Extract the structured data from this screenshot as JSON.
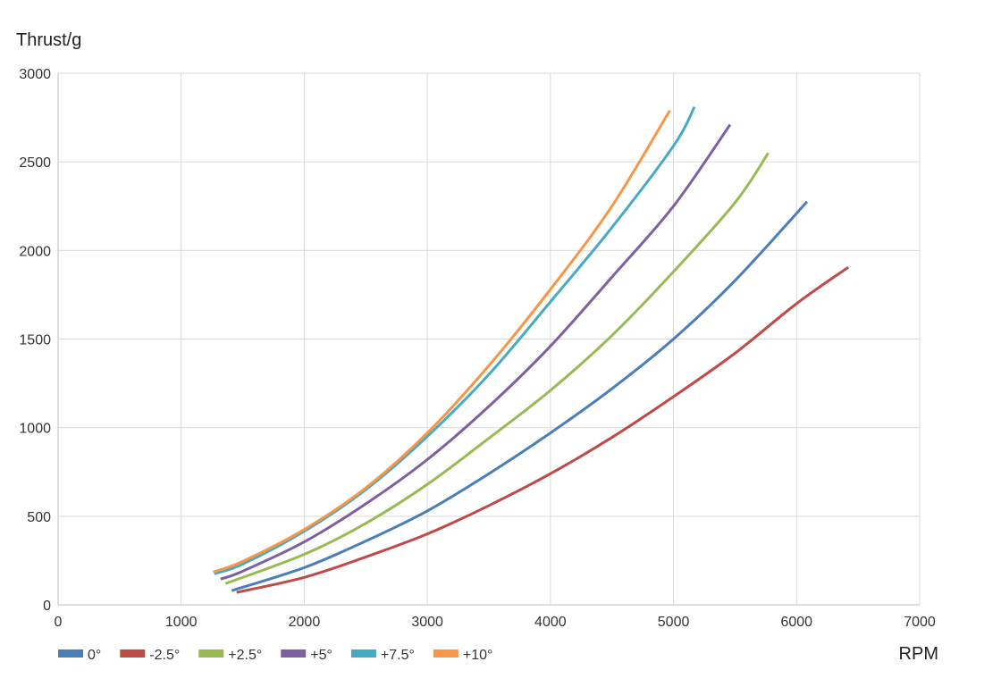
{
  "chart_data": {
    "type": "line",
    "title": "",
    "xlabel": "RPM",
    "ylabel": "Thrust/g",
    "xlim": [
      0,
      7000
    ],
    "ylim": [
      0,
      3000
    ],
    "xticks": [
      0,
      1000,
      2000,
      3000,
      4000,
      5000,
      6000,
      7000
    ],
    "yticks": [
      0,
      500,
      1000,
      1500,
      2000,
      2500,
      3000
    ],
    "x_tick_labels": [
      "0",
      "1000",
      "2000",
      "3000",
      "4000",
      "5000",
      "6000",
      "7000"
    ],
    "y_tick_labels": [
      "0",
      "500",
      "1000",
      "1500",
      "2000",
      "2500",
      "3000"
    ],
    "grid": true,
    "legend_position": "bottom-left",
    "series": [
      {
        "name": "0°",
        "color": "#4a7ebb",
        "x": [
          1410,
          2000,
          2500,
          3000,
          3500,
          4000,
          4500,
          5000,
          5500,
          6085
        ],
        "y": [
          80,
          210,
          360,
          530,
          740,
          970,
          1220,
          1500,
          1830,
          2275
        ]
      },
      {
        "name": "-2.5°",
        "color": "#be4b48",
        "x": [
          1450,
          2000,
          2500,
          3000,
          3500,
          4000,
          4500,
          5000,
          5500,
          6000,
          6420
        ],
        "y": [
          70,
          155,
          270,
          400,
          560,
          740,
          945,
          1175,
          1420,
          1700,
          1905
        ]
      },
      {
        "name": "+2.5°",
        "color": "#98b954",
        "x": [
          1360,
          2000,
          2500,
          3000,
          3500,
          4000,
          4500,
          5000,
          5500,
          5770
        ],
        "y": [
          120,
          285,
          460,
          680,
          940,
          1210,
          1520,
          1880,
          2270,
          2550
        ]
      },
      {
        "name": "+5°",
        "color": "#7d60a0",
        "x": [
          1320,
          1500,
          2000,
          2500,
          3000,
          3500,
          4000,
          4500,
          5000,
          5460
        ],
        "y": [
          145,
          190,
          355,
          570,
          820,
          1120,
          1460,
          1850,
          2250,
          2710
        ]
      },
      {
        "name": "+7.5°",
        "color": "#46aac5",
        "x": [
          1270,
          1500,
          2000,
          2500,
          3000,
          3500,
          4000,
          4500,
          5000,
          5170
        ],
        "y": [
          175,
          230,
          415,
          650,
          950,
          1300,
          1710,
          2130,
          2590,
          2810
        ]
      },
      {
        "name": "+10°",
        "color": "#f79646",
        "x": [
          1260,
          1500,
          2000,
          2500,
          3000,
          3500,
          4000,
          4500,
          4970
        ],
        "y": [
          185,
          245,
          425,
          660,
          970,
          1350,
          1780,
          2250,
          2790
        ]
      }
    ]
  },
  "colors": {
    "grid": "#d9d9d9",
    "axis": "#bfbfbf"
  }
}
